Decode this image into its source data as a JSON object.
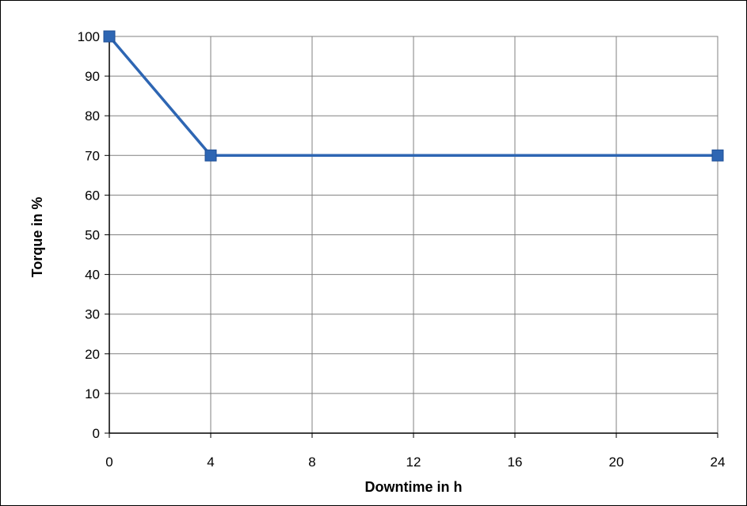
{
  "chart_data": {
    "type": "line",
    "title": "",
    "xlabel": "Downtime in h",
    "ylabel": "Torque in %",
    "x_ticks": [
      0,
      4,
      8,
      12,
      16,
      20,
      24
    ],
    "y_ticks": [
      0,
      10,
      20,
      30,
      40,
      50,
      60,
      70,
      80,
      90,
      100
    ],
    "xlim": [
      0,
      24
    ],
    "ylim": [
      0,
      100
    ],
    "grid": true,
    "legend": "none",
    "series": [
      {
        "color": "#2e66b3",
        "marker": "square",
        "x": [
          0,
          4,
          24
        ],
        "y": [
          100,
          70,
          70
        ]
      }
    ]
  }
}
